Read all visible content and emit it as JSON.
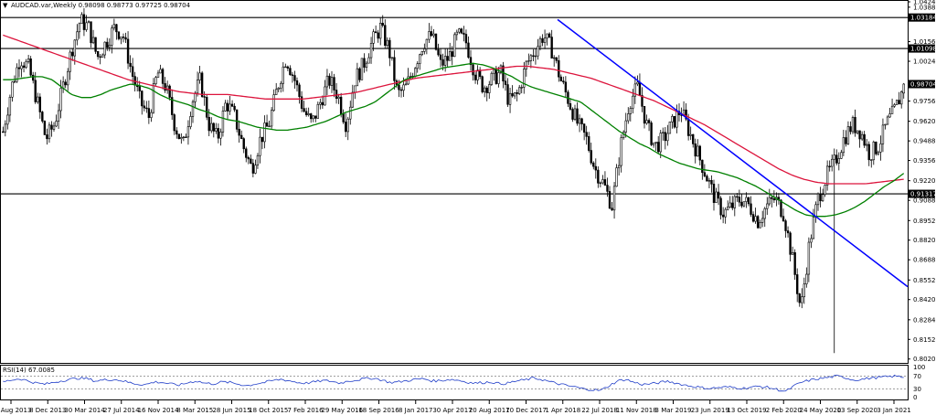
{
  "chart_data": {
    "type": "candlestick",
    "header": {
      "arrow": "▼",
      "text": "AUDCAD.var,Weekly  0.98098 0.98773 0.97725 0.98704"
    },
    "symbol": "AUDCAD.var",
    "timeframe": "Weekly",
    "ohlc": {
      "open": 0.98098,
      "high": 0.98773,
      "low": 0.97725,
      "close": 0.98704
    },
    "price_axis": {
      "ylim": [
        0.8,
        1.0424
      ],
      "ticks": [
        "1.04240",
        "1.03880",
        "1.01560",
        "1.00240",
        "0.97560",
        "0.96200",
        "0.94880",
        "0.93560",
        "0.92200",
        "0.90880",
        "0.89520",
        "0.88200",
        "0.86880",
        "0.85520",
        "0.84200",
        "0.82840",
        "0.81520",
        "0.80200"
      ]
    },
    "x_axis": {
      "labels": [
        "18 Aug 2013",
        "8 Dec 2013",
        "30 Mar 2014",
        "27 Jul 2014",
        "16 Nov 2014",
        "8 Mar 2015",
        "28 Jun 2015",
        "18 Oct 2015",
        "7 Feb 2016",
        "29 May 2016",
        "18 Sep 2016",
        "8 Jan 2017",
        "30 Apr 2017",
        "20 Aug 2017",
        "10 Dec 2017",
        "1 Apr 2018",
        "22 Jul 2018",
        "11 Nov 2018",
        "3 Mar 2019",
        "23 Jun 2019",
        "13 Oct 2019",
        "2 Feb 2020",
        "24 May 2020",
        "13 Sep 2020",
        "3 Jan 2021"
      ]
    },
    "horizontal_levels": [
      {
        "label": "1.03184",
        "value": 1.03184
      },
      {
        "label": "1.01098",
        "value": 1.01098
      },
      {
        "label": "0.91317",
        "value": 0.91317
      }
    ],
    "current_price_label": "0.98704",
    "trendline": {
      "color": "#0000ff",
      "from": {
        "date": "Jan 2018",
        "value": 1.0305
      },
      "to": {
        "date": "Jan 2021",
        "value": 0.8507
      }
    },
    "moving_averages": [
      {
        "color": "#008000"
      },
      {
        "color": "#dc143c"
      }
    ],
    "price_series": [
      0.955,
      0.985,
      1.005,
      0.998,
      0.975,
      0.95,
      0.96,
      0.985,
      1.01,
      1.03,
      1.025,
      1.005,
      1.015,
      1.025,
      1.02,
      0.995,
      0.975,
      0.965,
      0.995,
      0.985,
      0.96,
      0.945,
      0.975,
      0.99,
      0.96,
      0.95,
      0.975,
      0.965,
      0.945,
      0.93,
      0.95,
      0.96,
      0.985,
      1.005,
      0.99,
      0.97,
      0.96,
      0.975,
      0.99,
      0.98,
      0.96,
      0.99,
      1.0,
      1.015,
      1.025,
      1.01,
      0.98,
      0.985,
      1.0,
      1.015,
      1.02,
      1.0,
      1.005,
      1.02,
      1.015,
      0.995,
      0.985,
      0.99,
      0.995,
      0.975,
      0.98,
      1.0,
      1.01,
      1.02,
      1.01,
      0.99,
      0.975,
      0.96,
      0.95,
      0.93,
      0.92,
      0.905,
      0.945,
      0.975,
      0.985,
      0.96,
      0.945,
      0.95,
      0.96,
      0.97,
      0.955,
      0.94,
      0.925,
      0.91,
      0.9,
      0.905,
      0.91,
      0.905,
      0.895,
      0.905,
      0.91,
      0.9,
      0.87,
      0.835,
      0.88,
      0.91,
      0.925,
      0.935,
      0.95,
      0.96,
      0.955,
      0.94,
      0.945,
      0.96,
      0.97,
      0.985
    ],
    "ma_green": [
      0.99,
      0.99,
      0.991,
      0.992,
      0.992,
      0.99,
      0.985,
      0.98,
      0.978,
      0.978,
      0.98,
      0.983,
      0.985,
      0.987,
      0.986,
      0.984,
      0.98,
      0.977,
      0.975,
      0.973,
      0.97,
      0.968,
      0.965,
      0.963,
      0.962,
      0.96,
      0.958,
      0.957,
      0.956,
      0.956,
      0.957,
      0.958,
      0.96,
      0.962,
      0.965,
      0.968,
      0.97,
      0.972,
      0.975,
      0.98,
      0.985,
      0.99,
      0.992,
      0.994,
      0.996,
      0.998,
      0.999,
      1.0,
      1.001,
      1.0,
      0.998,
      0.995,
      0.992,
      0.988,
      0.985,
      0.983,
      0.981,
      0.979,
      0.977,
      0.975,
      0.97,
      0.965,
      0.96,
      0.955,
      0.951,
      0.947,
      0.944,
      0.94,
      0.937,
      0.934,
      0.932,
      0.93,
      0.929,
      0.928,
      0.926,
      0.924,
      0.921,
      0.918,
      0.914,
      0.91,
      0.906,
      0.902,
      0.899,
      0.898,
      0.898,
      0.899,
      0.901,
      0.904,
      0.908,
      0.913,
      0.918,
      0.922,
      0.927
    ],
    "ma_red": [
      1.02,
      1.017,
      1.014,
      1.011,
      1.008,
      1.005,
      1.002,
      0.999,
      0.996,
      0.993,
      0.99,
      0.988,
      0.986,
      0.984,
      0.982,
      0.981,
      0.98,
      0.98,
      0.98,
      0.979,
      0.978,
      0.977,
      0.977,
      0.977,
      0.977,
      0.978,
      0.979,
      0.98,
      0.981,
      0.983,
      0.985,
      0.987,
      0.989,
      0.991,
      0.992,
      0.993,
      0.994,
      0.995,
      0.996,
      0.997,
      0.998,
      0.999,
      0.999,
      0.998,
      0.997,
      0.995,
      0.993,
      0.991,
      0.988,
      0.985,
      0.982,
      0.979,
      0.976,
      0.972,
      0.968,
      0.964,
      0.96,
      0.955,
      0.95,
      0.945,
      0.94,
      0.935,
      0.93,
      0.926,
      0.923,
      0.921,
      0.92,
      0.92,
      0.92,
      0.92,
      0.921,
      0.922,
      0.923
    ],
    "rsi": {
      "label": "RSI(14) 67.0085",
      "period": 14,
      "value": 67.0085,
      "ylim": [
        0,
        100
      ],
      "levels": [
        70,
        30
      ],
      "tick_labels": [
        "100",
        "70",
        "30",
        "0"
      ],
      "series": [
        52,
        58,
        62,
        55,
        48,
        45,
        50,
        56,
        60,
        64,
        62,
        55,
        58,
        60,
        57,
        50,
        45,
        44,
        52,
        50,
        45,
        42,
        50,
        55,
        48,
        46,
        52,
        50,
        45,
        40,
        46,
        50,
        56,
        60,
        56,
        50,
        48,
        52,
        56,
        54,
        48,
        55,
        58,
        62,
        64,
        58,
        50,
        52,
        56,
        60,
        62,
        55,
        56,
        60,
        58,
        52,
        48,
        50,
        52,
        46,
        48,
        55,
        58,
        64,
        60,
        52,
        46,
        40,
        36,
        30,
        28,
        25,
        40,
        55,
        60,
        50,
        44,
        46,
        50,
        54,
        48,
        42,
        38,
        34,
        32,
        34,
        36,
        34,
        32,
        36,
        38,
        34,
        28,
        22,
        40,
        52,
        58,
        62,
        66,
        70,
        66,
        58,
        60,
        64,
        66,
        68,
        70,
        67
      ]
    }
  }
}
